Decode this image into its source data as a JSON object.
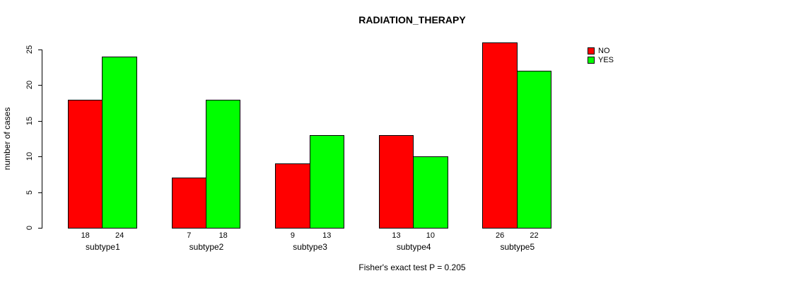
{
  "chart_data": {
    "type": "bar",
    "title": "RADIATION_THERAPY",
    "xlabel": "",
    "ylabel": "number of cases",
    "categories": [
      "subtype1",
      "subtype2",
      "subtype3",
      "subtype4",
      "subtype5"
    ],
    "series": [
      {
        "name": "NO",
        "color": "#ff0000",
        "values": [
          18,
          7,
          9,
          13,
          26
        ]
      },
      {
        "name": "YES",
        "color": "#00ff00",
        "values": [
          24,
          18,
          13,
          10,
          22
        ]
      }
    ],
    "yticks": [
      0,
      5,
      10,
      15,
      20,
      25
    ],
    "ylim": [
      0,
      25
    ],
    "grid": false,
    "bar_value_labels": true,
    "legend_position": "top-right",
    "annotation": "Fisher's exact test P = 0.205"
  }
}
